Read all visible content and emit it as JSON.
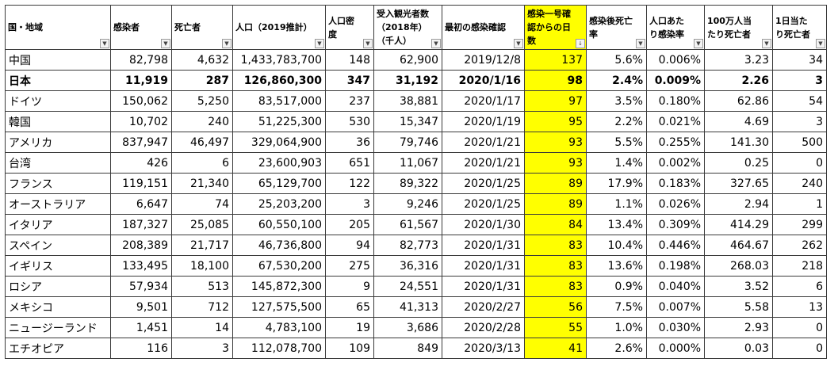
{
  "sheet": {
    "highlight_color": "#ffff00",
    "filter_icon": "dropdown-arrow-icon",
    "sorted_icon": "sort-descending-icon",
    "headers": [
      "国・地域",
      "感染者",
      "死亡者",
      "人口（2019推計）",
      "人口密度",
      "受入観光者数（2018年）（千人）",
      "最初の感染確認",
      "感染一号確認からの日数",
      "感染後死亡率",
      "人口あたり感染率",
      "100万人当たり死亡者",
      "1日当たり死亡者"
    ],
    "rows": [
      [
        "中国",
        "82,798",
        "4,632",
        "1,433,783,700",
        "148",
        "62,900",
        "2019/12/8",
        "137",
        "5.6%",
        "0.006%",
        "3.23",
        "34"
      ],
      [
        "日本",
        "11,919",
        "287",
        "126,860,300",
        "347",
        "31,192",
        "2020/1/16",
        "98",
        "2.4%",
        "0.009%",
        "2.26",
        "3"
      ],
      [
        "ドイツ",
        "150,062",
        "5,250",
        "83,517,000",
        "237",
        "38,881",
        "2020/1/17",
        "97",
        "3.5%",
        "0.180%",
        "62.86",
        "54"
      ],
      [
        "韓国",
        "10,702",
        "240",
        "51,225,300",
        "530",
        "15,347",
        "2020/1/19",
        "95",
        "2.2%",
        "0.021%",
        "4.69",
        "3"
      ],
      [
        "アメリカ",
        "837,947",
        "46,497",
        "329,064,900",
        "36",
        "79,746",
        "2020/1/21",
        "93",
        "5.5%",
        "0.255%",
        "141.30",
        "500"
      ],
      [
        "台湾",
        "426",
        "6",
        "23,600,903",
        "651",
        "11,067",
        "2020/1/21",
        "93",
        "1.4%",
        "0.002%",
        "0.25",
        "0"
      ],
      [
        "フランス",
        "119,151",
        "21,340",
        "65,129,700",
        "122",
        "89,322",
        "2020/1/25",
        "89",
        "17.9%",
        "0.183%",
        "327.65",
        "240"
      ],
      [
        "オーストラリア",
        "6,647",
        "74",
        "25,203,200",
        "3",
        "9,246",
        "2020/1/25",
        "89",
        "1.1%",
        "0.026%",
        "2.94",
        "1"
      ],
      [
        "イタリア",
        "187,327",
        "25,085",
        "60,550,100",
        "205",
        "61,567",
        "2020/1/30",
        "84",
        "13.4%",
        "0.309%",
        "414.29",
        "299"
      ],
      [
        "スペイン",
        "208,389",
        "21,717",
        "46,736,800",
        "94",
        "82,773",
        "2020/1/31",
        "83",
        "10.4%",
        "0.446%",
        "464.67",
        "262"
      ],
      [
        "イギリス",
        "133,495",
        "18,100",
        "67,530,200",
        "275",
        "36,316",
        "2020/1/31",
        "83",
        "13.6%",
        "0.198%",
        "268.03",
        "218"
      ],
      [
        "ロシア",
        "57,934",
        "513",
        "145,872,300",
        "9",
        "24,551",
        "2020/1/31",
        "83",
        "0.9%",
        "0.040%",
        "3.52",
        "6"
      ],
      [
        "メキシコ",
        "9,501",
        "712",
        "127,575,500",
        "65",
        "41,313",
        "2020/2/27",
        "56",
        "7.5%",
        "0.007%",
        "5.58",
        "13"
      ],
      [
        "ニュージーランド",
        "1,451",
        "14",
        "4,783,100",
        "19",
        "3,686",
        "2020/2/28",
        "55",
        "1.0%",
        "0.030%",
        "2.93",
        "0"
      ],
      [
        "エチオピア",
        "116",
        "3",
        "112,078,700",
        "109",
        "849",
        "2020/3/13",
        "41",
        "2.6%",
        "0.000%",
        "0.03",
        "0"
      ]
    ]
  }
}
